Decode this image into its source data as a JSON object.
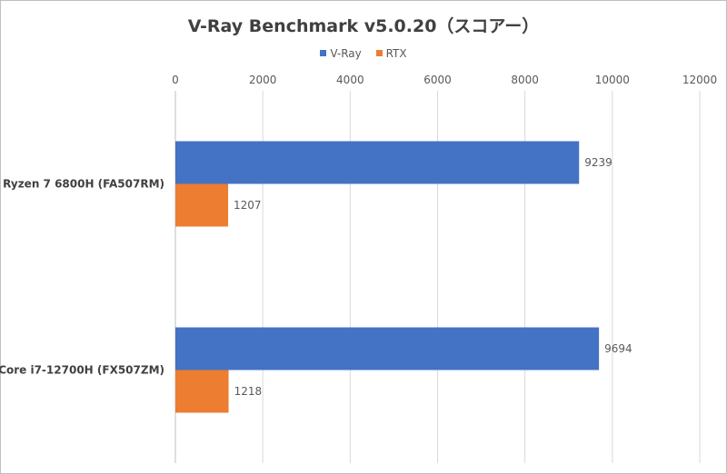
{
  "chart_data": {
    "type": "bar",
    "orientation": "horizontal",
    "title": "V-Ray Benchmark v5.0.20（スコアー）",
    "categories": [
      "Ryzen 7 6800H (FA507RM)",
      "Core i7-12700H (FX507ZM)"
    ],
    "series": [
      {
        "name": "V-Ray",
        "values": [
          9239,
          9694
        ],
        "color": "#4472c4"
      },
      {
        "name": "RTX",
        "values": [
          1207,
          1218
        ],
        "color": "#ed7d31"
      }
    ],
    "xlim": [
      0,
      12000
    ],
    "xticks": [
      0,
      2000,
      4000,
      6000,
      8000,
      10000,
      12000
    ],
    "grid": true,
    "legend_position": "top"
  }
}
